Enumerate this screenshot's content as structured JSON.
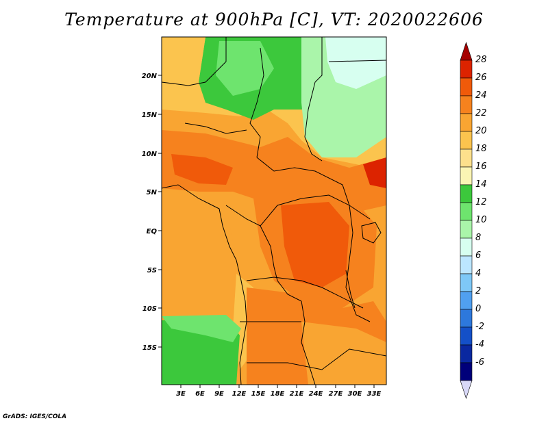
{
  "title": "Temperature at 900hPa [C], VT: 2020022606",
  "credit": "GrADS: IGES/COLA",
  "map": {
    "lat_labels": [
      "20N",
      "15N",
      "10N",
      "5N",
      "EQ",
      "5S",
      "10S",
      "15S"
    ],
    "lon_labels": [
      "3E",
      "6E",
      "9E",
      "12E",
      "15E",
      "18E",
      "21E",
      "24E",
      "27E",
      "30E",
      "33E"
    ],
    "region": "Central Africa",
    "variable": "Temperature",
    "level": "900hPa",
    "units": "C",
    "valid_time": "2020022606"
  },
  "colorbar": {
    "levels": [
      "28",
      "26",
      "24",
      "22",
      "20",
      "18",
      "16",
      "14",
      "12",
      "10",
      "8",
      "6",
      "4",
      "2",
      "0",
      "-2",
      "-4",
      "-6"
    ],
    "colors": [
      "#a50000",
      "#dc2300",
      "#f05a0a",
      "#f6821e",
      "#f9a532",
      "#fbc44e",
      "#fde08c",
      "#fbf5b4",
      "#3cc83c",
      "#6ee46e",
      "#aaf5aa",
      "#d7fff0",
      "#bce6ff",
      "#7ec8f7",
      "#50a0f0",
      "#2d78dc",
      "#1450c8",
      "#0a28a0",
      "#00007a",
      "#d8d8f8"
    ]
  },
  "colors": {
    "ocean": "#f9a532",
    "land_warm": "#f6821e",
    "land_hot": "#f05a0a",
    "desert_cool": "#3cc83c",
    "desert_mild": "#6ee46e",
    "border": "#000000"
  }
}
